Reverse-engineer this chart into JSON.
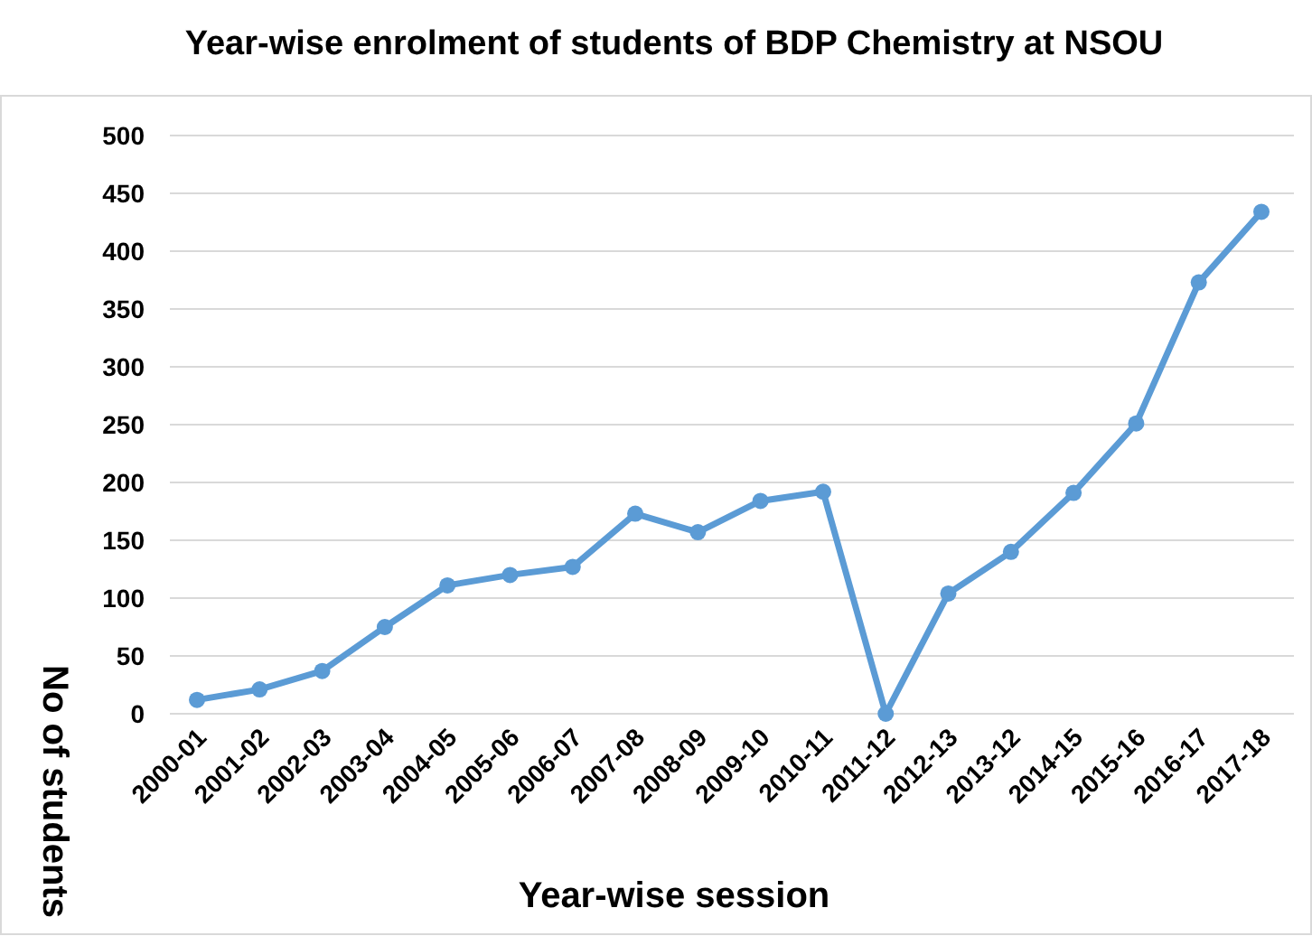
{
  "chart_data": {
    "type": "line",
    "title": "Year-wise enrolment of students of BDP Chemistry at NSOU",
    "xlabel": "Year-wise session",
    "ylabel": "No of students",
    "categories": [
      "2000-01",
      "2001-02",
      "2002-03",
      "2003-04",
      "2004-05",
      "2005-06",
      "2006-07",
      "2007-08",
      "2008-09",
      "2009-10",
      "2010-11",
      "2011-12",
      "2012-13",
      "2013-12",
      "2014-15",
      "2015-16",
      "2016-17",
      "2017-18"
    ],
    "series": [
      {
        "color": "#5b9bd5",
        "values": [
          12,
          21,
          37,
          75,
          111,
          120,
          127,
          173,
          157,
          184,
          192,
          0,
          104,
          140,
          191,
          251,
          373,
          434
        ]
      }
    ],
    "ylim": [
      0,
      500
    ],
    "yticks": [
      0,
      50,
      100,
      150,
      200,
      250,
      300,
      350,
      400,
      450,
      500
    ],
    "grid": "y",
    "marker": "circle",
    "line_style": "solid"
  }
}
